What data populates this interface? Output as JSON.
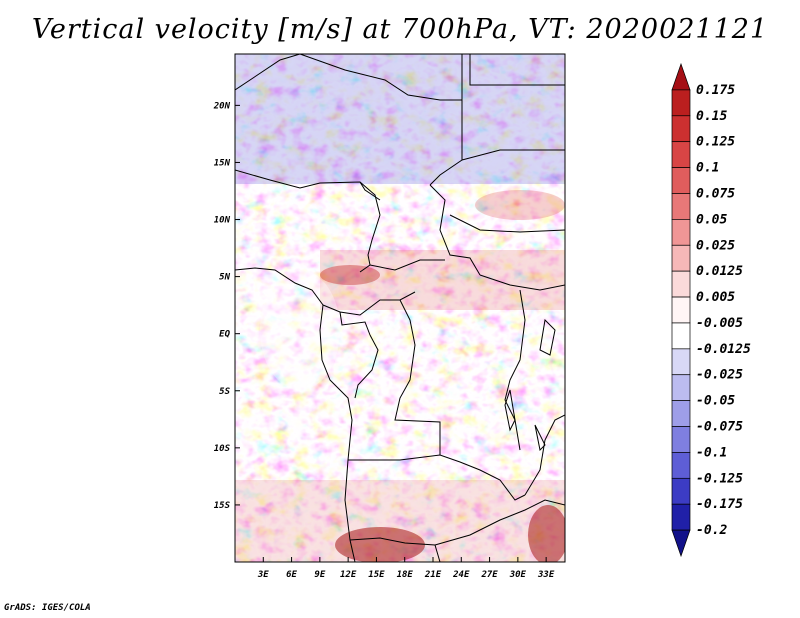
{
  "title": "Vertical velocity [m/s] at 700hPa, VT: 2020021121",
  "credit": "GrADS: IGES/COLA",
  "map": {
    "variable": "Vertical velocity",
    "units": "m/s",
    "level": "700hPa",
    "valid_time": "2020021121",
    "lat_labels": [
      "20N",
      "15N",
      "10N",
      "5N",
      "EQ",
      "5S",
      "10S",
      "15S"
    ],
    "lon_labels": [
      "3E",
      "6E",
      "9E",
      "12E",
      "15E",
      "18E",
      "21E",
      "24E",
      "27E",
      "30E",
      "33E"
    ],
    "lat_range": [
      -20,
      24.5
    ],
    "lon_range": [
      0,
      35
    ]
  },
  "colorbar": {
    "levels": [
      "0.175",
      "0.15",
      "0.125",
      "0.1",
      "0.075",
      "0.05",
      "0.025",
      "0.0125",
      "0.005",
      "-0.005",
      "-0.0125",
      "-0.025",
      "-0.05",
      "-0.075",
      "-0.1",
      "-0.125",
      "-0.175",
      "-0.2"
    ],
    "colors": [
      "#a50f15",
      "#bb1f1f",
      "#cc3030",
      "#d84545",
      "#e05d5d",
      "#e87878",
      "#f09696",
      "#f6b8b8",
      "#fbdada",
      "#fff5f5",
      "#ffffff",
      "#d8d8f6",
      "#bcbcf0",
      "#9e9ee8",
      "#7f7fe0",
      "#5e5ed6",
      "#3c3cc4",
      "#2020a8",
      "#12128a"
    ]
  }
}
